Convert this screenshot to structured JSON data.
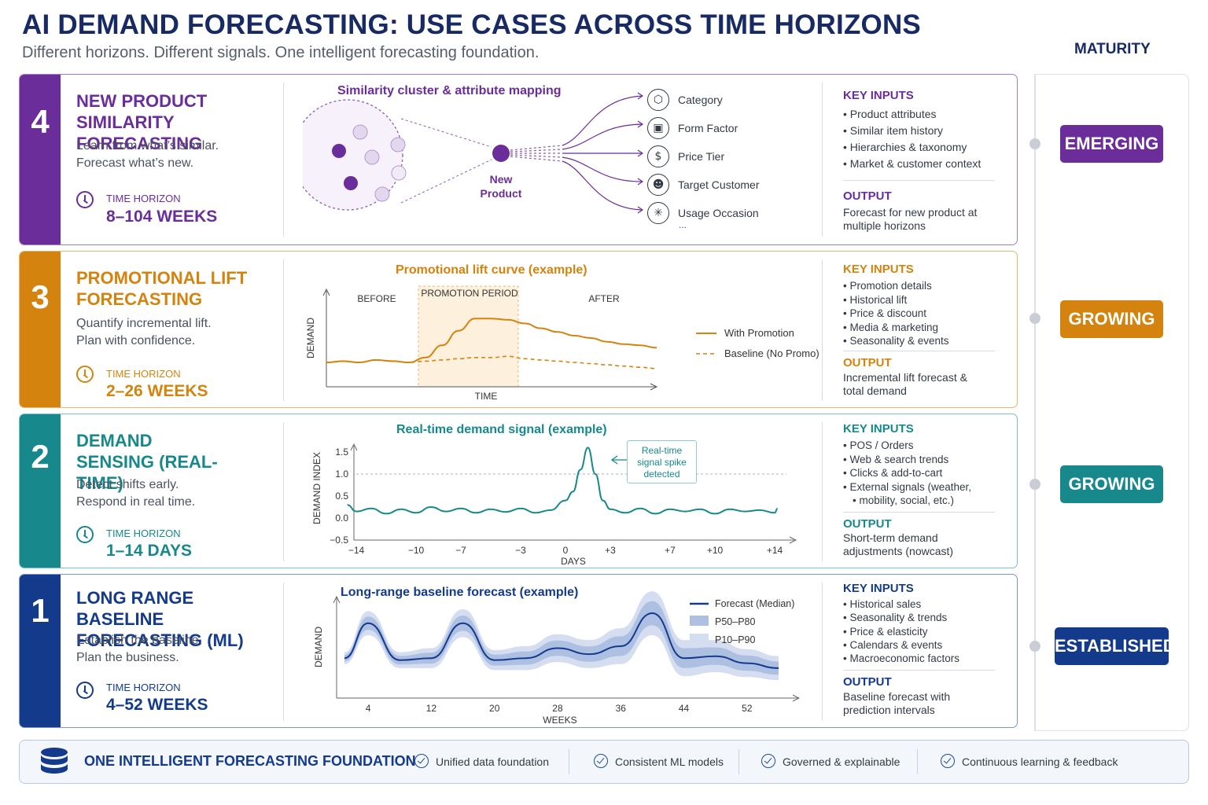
{
  "title": "AI DEMAND FORECASTING: USE CASES ACROSS TIME HORIZONS",
  "subtitle": "Different horizons. Different signals. One intelligent forecasting foundation.",
  "maturity_title": "MATURITY",
  "colors": {
    "purple": "#6a2d9a",
    "orange": "#d4830e",
    "teal": "#17888c",
    "blue": "#143a8c"
  },
  "panels": [
    {
      "number": "4",
      "title": "NEW PRODUCT SIMILARITY FORECASTING",
      "desc": "Learn from what’s similar. Forecast what’s new.",
      "time_label": "TIME HORIZON",
      "time_value": "8–104 WEEKS",
      "chart_title": "Similarity cluster & attribute mapping",
      "node_label": "New Product",
      "attributes": [
        {
          "icon": "tag-icon",
          "glyph": "⬡",
          "label": "Category"
        },
        {
          "icon": "cube-icon",
          "glyph": "▣",
          "label": "Form Factor"
        },
        {
          "icon": "dollar-icon",
          "glyph": "$",
          "label": "Price Tier"
        },
        {
          "icon": "people-icon",
          "glyph": "☻",
          "label": "Target Customer"
        },
        {
          "icon": "sparkle-icon",
          "glyph": "✳",
          "label": "Usage Occasion"
        }
      ],
      "attributes_more": "...",
      "key_inputs_label": "KEY INPUTS",
      "key_inputs": [
        "Product attributes",
        "Similar item history",
        "Hierarchies & taxonomy",
        "Market & customer context"
      ],
      "output_label": "OUTPUT",
      "output": "Forecast for new product at multiple horizons",
      "maturity": "EMERGING"
    },
    {
      "number": "3",
      "title": "PROMOTIONAL LIFT FORECASTING",
      "desc": "Quantify incremental lift. Plan with confidence.",
      "time_label": "TIME HORIZON",
      "time_value": "2–26 WEEKS",
      "chart_title": "Promotional lift curve (example)",
      "phase_before": "BEFORE",
      "phase_promo": "PROMOTION PERIOD",
      "phase_after": "AFTER",
      "ylabel": "DEMAND",
      "xlabel": "TIME",
      "legend_with": "With Promotion",
      "legend_baseline": "Baseline (No Promo)",
      "key_inputs_label": "KEY INPUTS",
      "key_inputs": [
        "Promotion details",
        "Historical lift",
        "Price & discount",
        "Media & marketing",
        "Seasonality & events"
      ],
      "output_label": "OUTPUT",
      "output": "Incremental lift forecast & total demand",
      "maturity": "GROWING"
    },
    {
      "number": "2",
      "title": "DEMAND SENSING (REAL-TIME)",
      "desc": "Detect shifts early. Respond in real time.",
      "time_label": "TIME HORIZON",
      "time_value": "1–14 DAYS",
      "chart_title": "Real-time demand signal (example)",
      "ylabel": "DEMAND INDEX",
      "xlabel": "DAYS",
      "callout": "Real-time signal spike detected",
      "key_inputs_label": "KEY INPUTS",
      "key_inputs": [
        "POS / Orders",
        "Web & search trends",
        "Clicks & add-to-cart",
        "External signals (weather,",
        "mobility, social, etc.)"
      ],
      "output_label": "OUTPUT",
      "output": "Short-term demand adjustments (nowcast)",
      "maturity": "GROWING"
    },
    {
      "number": "1",
      "title": "LONG RANGE BASELINE FORECASTING (ML)",
      "desc": "Establish the baseline. Plan the business.",
      "time_label": "TIME HORIZON",
      "time_value": "4–52 WEEKS",
      "chart_title": "Long-range baseline forecast (example)",
      "ylabel": "DEMAND",
      "xlabel": "WEEKS",
      "legend": [
        "Forecast (Median)",
        "P50–P80",
        "P10–P90"
      ],
      "key_inputs_label": "KEY INPUTS",
      "key_inputs": [
        "Historical sales",
        "Seasonality & trends",
        "Price & elasticity",
        "Calendars & events",
        "Macroeconomic factors"
      ],
      "output_label": "OUTPUT",
      "output": "Baseline forecast with prediction intervals",
      "maturity": "ESTABLISHED"
    }
  ],
  "footer": {
    "icon": "database-icon",
    "title": "ONE INTELLIGENT FORECASTING FOUNDATION",
    "items": [
      "Unified data foundation",
      "Consistent ML models",
      "Governed & explainable",
      "Continuous learning & feedback"
    ]
  },
  "chart_data": [
    {
      "type": "line",
      "title": "Promotional lift curve (example)",
      "xlabel": "TIME",
      "ylabel": "DEMAND",
      "x": [
        0,
        1,
        2,
        3,
        4,
        5,
        6,
        7,
        8,
        9,
        10,
        11,
        12,
        13,
        14,
        15,
        16,
        17,
        18,
        19,
        20
      ],
      "series": [
        {
          "name": "With Promotion",
          "values": [
            20,
            21,
            20,
            22,
            21,
            20,
            24,
            34,
            46,
            56,
            56,
            55,
            52,
            48,
            45,
            42,
            40,
            37,
            35,
            34,
            32
          ]
        },
        {
          "name": "Baseline (No Promo)",
          "values": [
            20,
            21,
            20,
            22,
            21,
            20,
            21,
            22,
            23,
            24,
            24,
            25,
            23,
            22,
            21,
            20,
            19,
            18,
            17,
            16,
            15
          ]
        }
      ],
      "annotations": [
        "BEFORE",
        "PROMOTION PERIOD",
        "AFTER"
      ]
    },
    {
      "type": "line",
      "title": "Real-time demand signal (example)",
      "xlabel": "DAYS",
      "ylabel": "DEMAND INDEX",
      "x_ticks": [
        "−14",
        "−10",
        "−7",
        "−3",
        "0",
        "+3",
        "+7",
        "+10",
        "+14"
      ],
      "y_ticks": [
        "1.5",
        "1.0",
        "0.5",
        "0.0",
        "−0.5"
      ],
      "xlim": [
        -14,
        14
      ],
      "ylim": [
        -0.5,
        1.5
      ],
      "reference_line": 1.0,
      "series": [
        {
          "name": "",
          "x": [
            -15,
            -14,
            -13,
            -12,
            -11,
            -10,
            -9,
            -8,
            -7,
            -6,
            -5,
            -4,
            -3,
            -2,
            -1,
            0,
            0.5,
            1,
            1.5,
            2,
            2.5,
            3,
            4,
            5,
            6,
            7,
            8,
            9,
            10,
            11,
            12,
            13,
            14,
            15
          ],
          "values": [
            0.3,
            0.15,
            0.22,
            0.1,
            0.2,
            0.12,
            0.25,
            0.15,
            0.22,
            0.12,
            0.2,
            0.14,
            0.22,
            0.12,
            0.18,
            0.4,
            0.6,
            1.1,
            1.6,
            1.0,
            0.4,
            0.2,
            0.12,
            0.22,
            0.1,
            0.2,
            0.15,
            0.2,
            0.1,
            0.2,
            0.15,
            0.18,
            0.12,
            0.22
          ]
        }
      ],
      "annotations": [
        "Real-time signal spike detected"
      ]
    },
    {
      "type": "area",
      "title": "Long-range baseline forecast (example)",
      "xlabel": "WEEKS",
      "ylabel": "DEMAND",
      "x_ticks": [
        4,
        12,
        20,
        28,
        36,
        44,
        52
      ],
      "series": [
        {
          "name": "Forecast (Median)",
          "x": [
            1,
            4,
            8,
            12,
            16,
            20,
            24,
            28,
            32,
            36,
            40,
            44,
            48,
            52,
            56
          ],
          "values": [
            40,
            75,
            38,
            40,
            75,
            38,
            40,
            50,
            44,
            52,
            85,
            40,
            42,
            35,
            30
          ]
        },
        {
          "name": "P50–P80"
        },
        {
          "name": "P10–P90"
        }
      ]
    }
  ]
}
